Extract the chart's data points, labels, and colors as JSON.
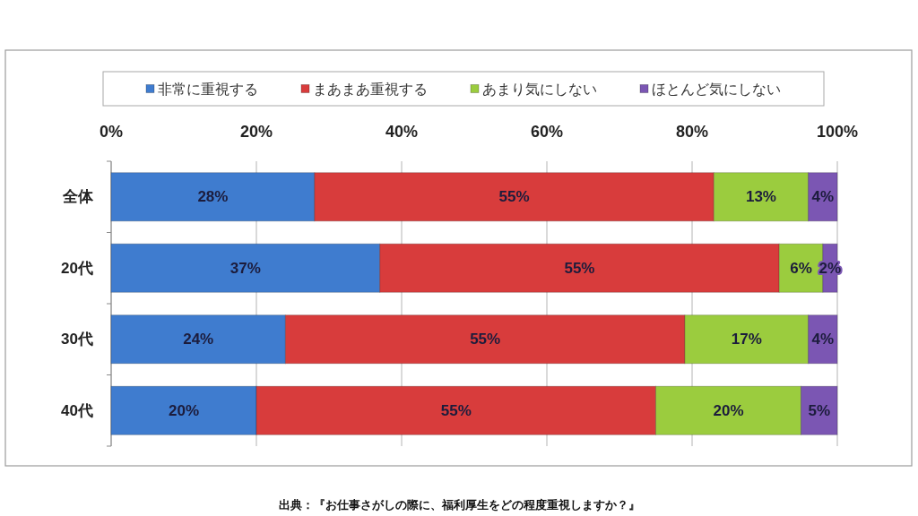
{
  "chart_data": {
    "type": "bar",
    "orientation": "horizontal",
    "stacked": true,
    "categories": [
      "全体",
      "20代",
      "30代",
      "40代"
    ],
    "series": [
      {
        "name": "非常に重視する",
        "color": "#3f7ccf",
        "values": [
          28,
          37,
          24,
          20
        ],
        "value_labels": [
          "28%",
          "37%",
          "24%",
          "20%"
        ]
      },
      {
        "name": "まあまあ重視する",
        "color": "#d83c3c",
        "values": [
          55,
          55,
          55,
          55
        ],
        "value_labels": [
          "55%",
          "55%",
          "55%",
          "55%"
        ]
      },
      {
        "name": "あまり気にしない",
        "color": "#9bcc3e",
        "values": [
          13,
          6,
          17,
          20
        ],
        "value_labels": [
          "13%",
          "6%",
          "17%",
          "20%"
        ]
      },
      {
        "name": "ほとんど気にしない",
        "color": "#7b56b3",
        "values": [
          4,
          2,
          4,
          5
        ],
        "value_labels": [
          "4%",
          "2%",
          "4%",
          "5%"
        ]
      }
    ],
    "xlim": [
      0,
      100
    ],
    "xticks": [
      {
        "value": 0,
        "label": "0%"
      },
      {
        "value": 20,
        "label": "20%"
      },
      {
        "value": 40,
        "label": "40%"
      },
      {
        "value": 60,
        "label": "60%"
      },
      {
        "value": 80,
        "label": "80%"
      },
      {
        "value": 100,
        "label": "100%"
      }
    ],
    "grid": "x",
    "legend": "top",
    "annotations": [
      "出典：『お仕事さがしの際に、福利厚生をどの程度重視しますか？』"
    ]
  }
}
